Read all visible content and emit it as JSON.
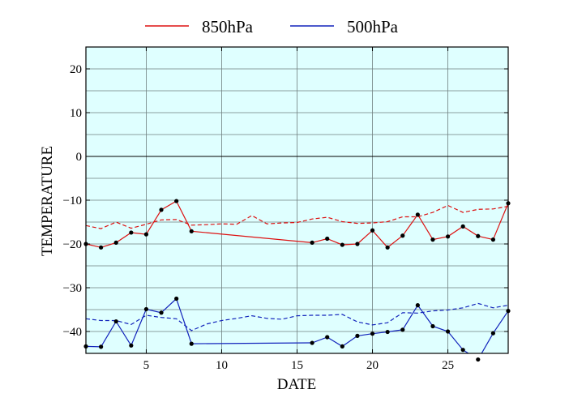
{
  "chart_data": {
    "type": "line",
    "xlabel": "DATE",
    "ylabel": "TEMPERATURE",
    "xlim": [
      1,
      29
    ],
    "ylim": [
      -45,
      25
    ],
    "xticks": [
      5,
      10,
      15,
      20,
      25
    ],
    "yticks": [
      20,
      10,
      0,
      -10,
      -20,
      -30,
      -40
    ],
    "grid": true,
    "background": "#dfffff",
    "legend_position": "top",
    "series": [
      {
        "name": "850hPa",
        "color": "#dd1111",
        "style": "solid",
        "markers": true,
        "x": [
          1,
          2,
          3,
          4,
          5,
          6,
          7,
          8,
          16,
          17,
          18,
          19,
          20,
          21,
          22,
          23,
          24,
          25,
          26,
          27,
          28,
          29
        ],
        "y": [
          -20.0,
          -20.8,
          -19.7,
          -17.4,
          -17.8,
          -12.2,
          -10.2,
          -17.1,
          -19.7,
          -18.8,
          -20.2,
          -20.0,
          -16.9,
          -20.8,
          -18.1,
          -13.3,
          -19.0,
          -18.3,
          -16.0,
          -18.2,
          -19.0,
          -10.7
        ]
      },
      {
        "name": "",
        "color": "#dd1111",
        "style": "dashed",
        "markers": false,
        "x": [
          1,
          2,
          3,
          4,
          5,
          6,
          7,
          8,
          9,
          10,
          11,
          12,
          13,
          14,
          15,
          16,
          17,
          18,
          19,
          20,
          21,
          22,
          23,
          24,
          25,
          26,
          27,
          28,
          29
        ],
        "y": [
          -15.8,
          -16.5,
          -15.0,
          -16.4,
          -15.5,
          -14.5,
          -14.4,
          -15.7,
          -15.6,
          -15.4,
          -15.5,
          -13.5,
          -15.4,
          -15.2,
          -15.1,
          -14.3,
          -13.9,
          -14.9,
          -15.3,
          -15.2,
          -14.9,
          -13.8,
          -13.8,
          -12.8,
          -11.2,
          -12.8,
          -12.1,
          -12.0,
          -11.4
        ]
      },
      {
        "name": "500hPa",
        "color": "#1122bb",
        "style": "solid",
        "markers": true,
        "x": [
          1,
          2,
          3,
          4,
          5,
          6,
          7,
          8,
          16,
          17,
          18,
          19,
          20,
          21,
          22,
          23,
          24,
          25,
          26,
          27,
          28,
          29
        ],
        "y": [
          -43.4,
          -43.5,
          -37.7,
          -43.2,
          -34.9,
          -35.7,
          -32.5,
          -42.8,
          -42.6,
          -41.3,
          -43.4,
          -41.0,
          -40.5,
          -40.1,
          -39.6,
          -34.0,
          -38.8,
          -40.0,
          -44.2,
          -46.4,
          -40.4,
          -35.3
        ]
      },
      {
        "name": "",
        "color": "#1122bb",
        "style": "dashed",
        "markers": false,
        "x": [
          1,
          2,
          3,
          4,
          5,
          6,
          7,
          8,
          9,
          10,
          11,
          12,
          13,
          14,
          15,
          16,
          17,
          18,
          19,
          20,
          21,
          22,
          23,
          24,
          25,
          26,
          27,
          28,
          29
        ],
        "y": [
          -37.1,
          -37.5,
          -37.5,
          -38.4,
          -36.3,
          -36.8,
          -37.1,
          -39.8,
          -38.3,
          -37.5,
          -37.0,
          -36.4,
          -37.0,
          -37.2,
          -36.4,
          -36.3,
          -36.3,
          -36.1,
          -37.8,
          -38.5,
          -38.0,
          -35.7,
          -35.8,
          -35.3,
          -35.1,
          -34.6,
          -33.6,
          -34.6,
          -34.0
        ]
      }
    ]
  }
}
